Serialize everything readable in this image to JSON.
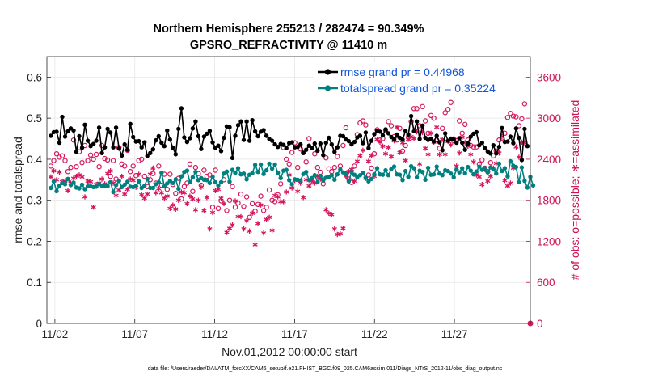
{
  "chart_data": {
    "type": "line",
    "title": "Northern Hemisphere 255213 / 282474 = 90.349%",
    "subtitle": "GPSRO_REFRACTIVITY @ 11410 m",
    "xlabel": "Nov.01,2012 00:00:00 start",
    "ylabel": "rmse and totalspread",
    "ylabel_right": "# of obs: o=possible; ∗=assimilated",
    "footnote": "data file: /Users/raeder/DAI/ATM_forcXX/CAM6_setup/f.e21.FHIST_BGC.f09_025.CAM6assim.011/Diags_NTrS_2012-11/obs_diag_output.nc",
    "x_range_days": [
      0.5,
      30.75
    ],
    "x_ticks": [
      {
        "day": 1,
        "label": "11/02"
      },
      {
        "day": 6,
        "label": "11/07"
      },
      {
        "day": 11,
        "label": "11/12"
      },
      {
        "day": 16,
        "label": "11/17"
      },
      {
        "day": 21,
        "label": "11/22"
      },
      {
        "day": 26,
        "label": "11/27"
      }
    ],
    "ylim": [
      0,
      0.65
    ],
    "yticks": [
      "0",
      "0.1",
      "0.2",
      "0.3",
      "0.4",
      "0.5",
      "0.6"
    ],
    "ylim_right": [
      0,
      3900
    ],
    "yticks_right": [
      "0",
      "600",
      "1200",
      "1800",
      "2400",
      "3000",
      "3600"
    ],
    "grid": true,
    "legend_position": "top-right",
    "colors": {
      "rmse": "#000000",
      "spread": "#008080",
      "obs": "#d6155c"
    },
    "series": [
      {
        "name": "rmse grand pr = 0.44968",
        "marker": "circle",
        "values": [
          0.457,
          0.466,
          0.467,
          0.44,
          0.503,
          0.455,
          0.468,
          0.475,
          0.47,
          0.418,
          0.456,
          0.428,
          0.484,
          0.445,
          0.432,
          0.437,
          0.445,
          0.477,
          0.415,
          0.429,
          0.474,
          0.465,
          0.429,
          0.477,
          0.426,
          0.409,
          0.436,
          0.423,
          0.486,
          0.454,
          0.443,
          0.444,
          0.429,
          0.441,
          0.408,
          0.415,
          0.424,
          0.446,
          0.456,
          0.44,
          0.432,
          0.47,
          0.448,
          0.428,
          0.412,
          0.474,
          0.524,
          0.453,
          0.442,
          0.451,
          0.475,
          0.492,
          0.456,
          0.425,
          0.455,
          0.462,
          0.469,
          0.441,
          0.428,
          0.433,
          0.42,
          0.452,
          0.48,
          0.478,
          0.403,
          0.457,
          0.483,
          0.492,
          0.447,
          0.492,
          0.445,
          0.495,
          0.468,
          0.456,
          0.467,
          0.471,
          0.457,
          0.449,
          0.445,
          0.436,
          0.43,
          0.437,
          0.435,
          0.427,
          0.439,
          0.441,
          0.429,
          0.43,
          0.436,
          0.415,
          0.423,
          0.433,
          0.427,
          0.438,
          0.421,
          0.438,
          0.41,
          0.44,
          0.452,
          0.436,
          0.418,
          0.429,
          0.457,
          0.456,
          0.448,
          0.444,
          0.436,
          0.442,
          0.453,
          0.457,
          0.439,
          0.465,
          0.427,
          0.445,
          0.461,
          0.469,
          0.467,
          0.458,
          0.473,
          0.463,
          0.454,
          0.448,
          0.46,
          0.452,
          0.448,
          0.469,
          0.46,
          0.505,
          0.468,
          0.492,
          0.449,
          0.482,
          0.452,
          0.447,
          0.45,
          0.443,
          0.457,
          0.441,
          0.422,
          0.463,
          0.445,
          0.45,
          0.448,
          0.44,
          0.451,
          0.44,
          0.423,
          0.438,
          0.455,
          0.462,
          0.466,
          0.434,
          0.44,
          0.427,
          0.419,
          0.414,
          0.434,
          0.414,
          0.43,
          0.476,
          0.442,
          0.443,
          0.455,
          0.439,
          0.475,
          0.452,
          0.398,
          0.474,
          0.432
        ]
      },
      {
        "name": "totalspread grand pr = 0.35224",
        "marker": "circle",
        "values": [
          0.33,
          0.346,
          0.322,
          0.335,
          0.342,
          0.339,
          0.352,
          0.337,
          0.343,
          0.331,
          0.329,
          0.338,
          0.327,
          0.334,
          0.334,
          0.332,
          0.333,
          0.34,
          0.335,
          0.335,
          0.334,
          0.344,
          0.32,
          0.337,
          0.347,
          0.332,
          0.338,
          0.345,
          0.333,
          0.332,
          0.335,
          0.346,
          0.33,
          0.335,
          0.352,
          0.33,
          0.33,
          0.339,
          0.344,
          0.367,
          0.334,
          0.341,
          0.347,
          0.342,
          0.351,
          0.328,
          0.358,
          0.369,
          0.372,
          0.344,
          0.356,
          0.369,
          0.349,
          0.354,
          0.35,
          0.349,
          0.342,
          0.357,
          0.344,
          0.336,
          0.344,
          0.365,
          0.37,
          0.345,
          0.374,
          0.367,
          0.378,
          0.363,
          0.365,
          0.351,
          0.362,
          0.366,
          0.386,
          0.369,
          0.387,
          0.364,
          0.373,
          0.389,
          0.377,
          0.387,
          0.367,
          0.354,
          0.372,
          0.374,
          0.349,
          0.339,
          0.351,
          0.35,
          0.348,
          0.364,
          0.369,
          0.349,
          0.354,
          0.361,
          0.344,
          0.359,
          0.348,
          0.355,
          0.357,
          0.361,
          0.35,
          0.363,
          0.375,
          0.368,
          0.366,
          0.346,
          0.369,
          0.362,
          0.356,
          0.361,
          0.367,
          0.355,
          0.346,
          0.352,
          0.363,
          0.378,
          0.363,
          0.362,
          0.373,
          0.361,
          0.376,
          0.382,
          0.363,
          0.362,
          0.349,
          0.371,
          0.357,
          0.383,
          0.378,
          0.356,
          0.372,
          0.369,
          0.35,
          0.379,
          0.362,
          0.363,
          0.382,
          0.365,
          0.361,
          0.373,
          0.371,
          0.365,
          0.356,
          0.375,
          0.368,
          0.378,
          0.366,
          0.381,
          0.372,
          0.363,
          0.37,
          0.382,
          0.374,
          0.378,
          0.368,
          0.38,
          0.375,
          0.365,
          0.389,
          0.371,
          0.378,
          0.358,
          0.395,
          0.384,
          0.381,
          0.344,
          0.38,
          0.347,
          0.331,
          0.357,
          0.336
        ]
      },
      {
        "name": "possible",
        "marker": "open-circle",
        "axis": "right",
        "values": [
          2300,
          2380,
          2480,
          2430,
          2450,
          2380,
          2220,
          2280,
          2680,
          2290,
          2510,
          2350,
          2600,
          2380,
          2460,
          2400,
          2470,
          2290,
          2600,
          2410,
          2390,
          2150,
          2380,
          2110,
          2570,
          2330,
          2300,
          2530,
          2220,
          2300,
          2160,
          2380,
          2400,
          2150,
          2000,
          2100,
          2190,
          2050,
          2300,
          2020,
          2180,
          1960,
          2180,
          2030,
          1900,
          2120,
          1820,
          2000,
          2050,
          2330,
          1930,
          2280,
          2190,
          2020,
          2240,
          2150,
          2170,
          1700,
          2240,
          1680,
          1790,
          2100,
          1650,
          1800,
          2000,
          1700,
          1760,
          1890,
          1710,
          1850,
          1550,
          1750,
          1640,
          1740,
          1860,
          1650,
          1700,
          1950,
          1800,
          1780,
          1880,
          2040,
          2570,
          2400,
          2330,
          2500,
          2640,
          2280,
          2550,
          2500,
          2360,
          2700,
          2070,
          2480,
          2280,
          2210,
          2040,
          2420,
          2260,
          2220,
          2280,
          2440,
          2300,
          2600,
          2860,
          2110,
          2060,
          2300,
          2760,
          2930,
          2960,
          2900,
          2170,
          2270,
          2480,
          2830,
          2680,
          2700,
          2820,
          2950,
          2890,
          2730,
          2680,
          2850,
          2520,
          2600,
          2720,
          2950,
          3140,
          3140,
          2890,
          3170,
          2960,
          2780,
          3040,
          3000,
          2680,
          2560,
          2850,
          3080,
          3130,
          3230,
          2670,
          2670,
          2960,
          2780,
          2910,
          2680,
          2600,
          2580,
          2580,
          2330,
          2390,
          2270,
          2220,
          2350,
          2450,
          2520,
          2680,
          2710,
          2780,
          3010,
          3070,
          3030,
          3020,
          2890,
          2990,
          3210
        ]
      },
      {
        "name": "assimilated",
        "marker": "asterisk",
        "axis": "right",
        "values": [
          2140,
          2230,
          2100,
          2210,
          2070,
          2080,
          1940,
          2050,
          2120,
          2150,
          2170,
          2140,
          1850,
          2080,
          2070,
          1700,
          2030,
          2050,
          2110,
          2040,
          2190,
          2230,
          2050,
          1870,
          1950,
          2150,
          1890,
          1960,
          2110,
          2090,
          1990,
          2180,
          1880,
          1830,
          1890,
          2180,
          2270,
          1910,
          1970,
          1910,
          1830,
          1860,
          1680,
          1730,
          1670,
          1800,
          1920,
          1910,
          1750,
          1860,
          1820,
          1660,
          1800,
          1990,
          1650,
          1840,
          1380,
          1620,
          1940,
          1960,
          1830,
          1750,
          1330,
          1390,
          1440,
          1790,
          1560,
          1560,
          1380,
          1500,
          1350,
          1610,
          1150,
          1460,
          1730,
          1320,
          1520,
          1550,
          1360,
          1870,
          1850,
          1780,
          1780,
          1920,
          2170,
          1980,
          2090,
          1930,
          2050,
          1840,
          2100,
          2010,
          2080,
          2050,
          2150,
          2110,
          2110,
          1660,
          1610,
          1590,
          1380,
          1300,
          1310,
          1390,
          2150,
          2220,
          2250,
          2080,
          2370,
          2450,
          2530,
          2120,
          2370,
          2450,
          2150,
          2690,
          2650,
          2590,
          2480,
          2570,
          2440,
          2670,
          2870,
          2500,
          2640,
          2380,
          2690,
          2730,
          2700,
          2800,
          2330,
          2790,
          2560,
          2470,
          2780,
          2650,
          2870,
          2470,
          2690,
          2470,
          2660,
          2610,
          2700,
          2300,
          2490,
          2720,
          2640,
          2590,
          2470,
          2360,
          2170,
          2140,
          2030,
          2250,
          2080,
          2150,
          2270,
          2340,
          2490,
          2730,
          2090,
          2010,
          2050,
          2270,
          2580,
          2430,
          2650,
          2640
        ]
      }
    ]
  },
  "legend": {
    "rmse_label": "rmse grand pr = 0.44968",
    "spread_label": "totalspread grand pr = 0.35224"
  }
}
